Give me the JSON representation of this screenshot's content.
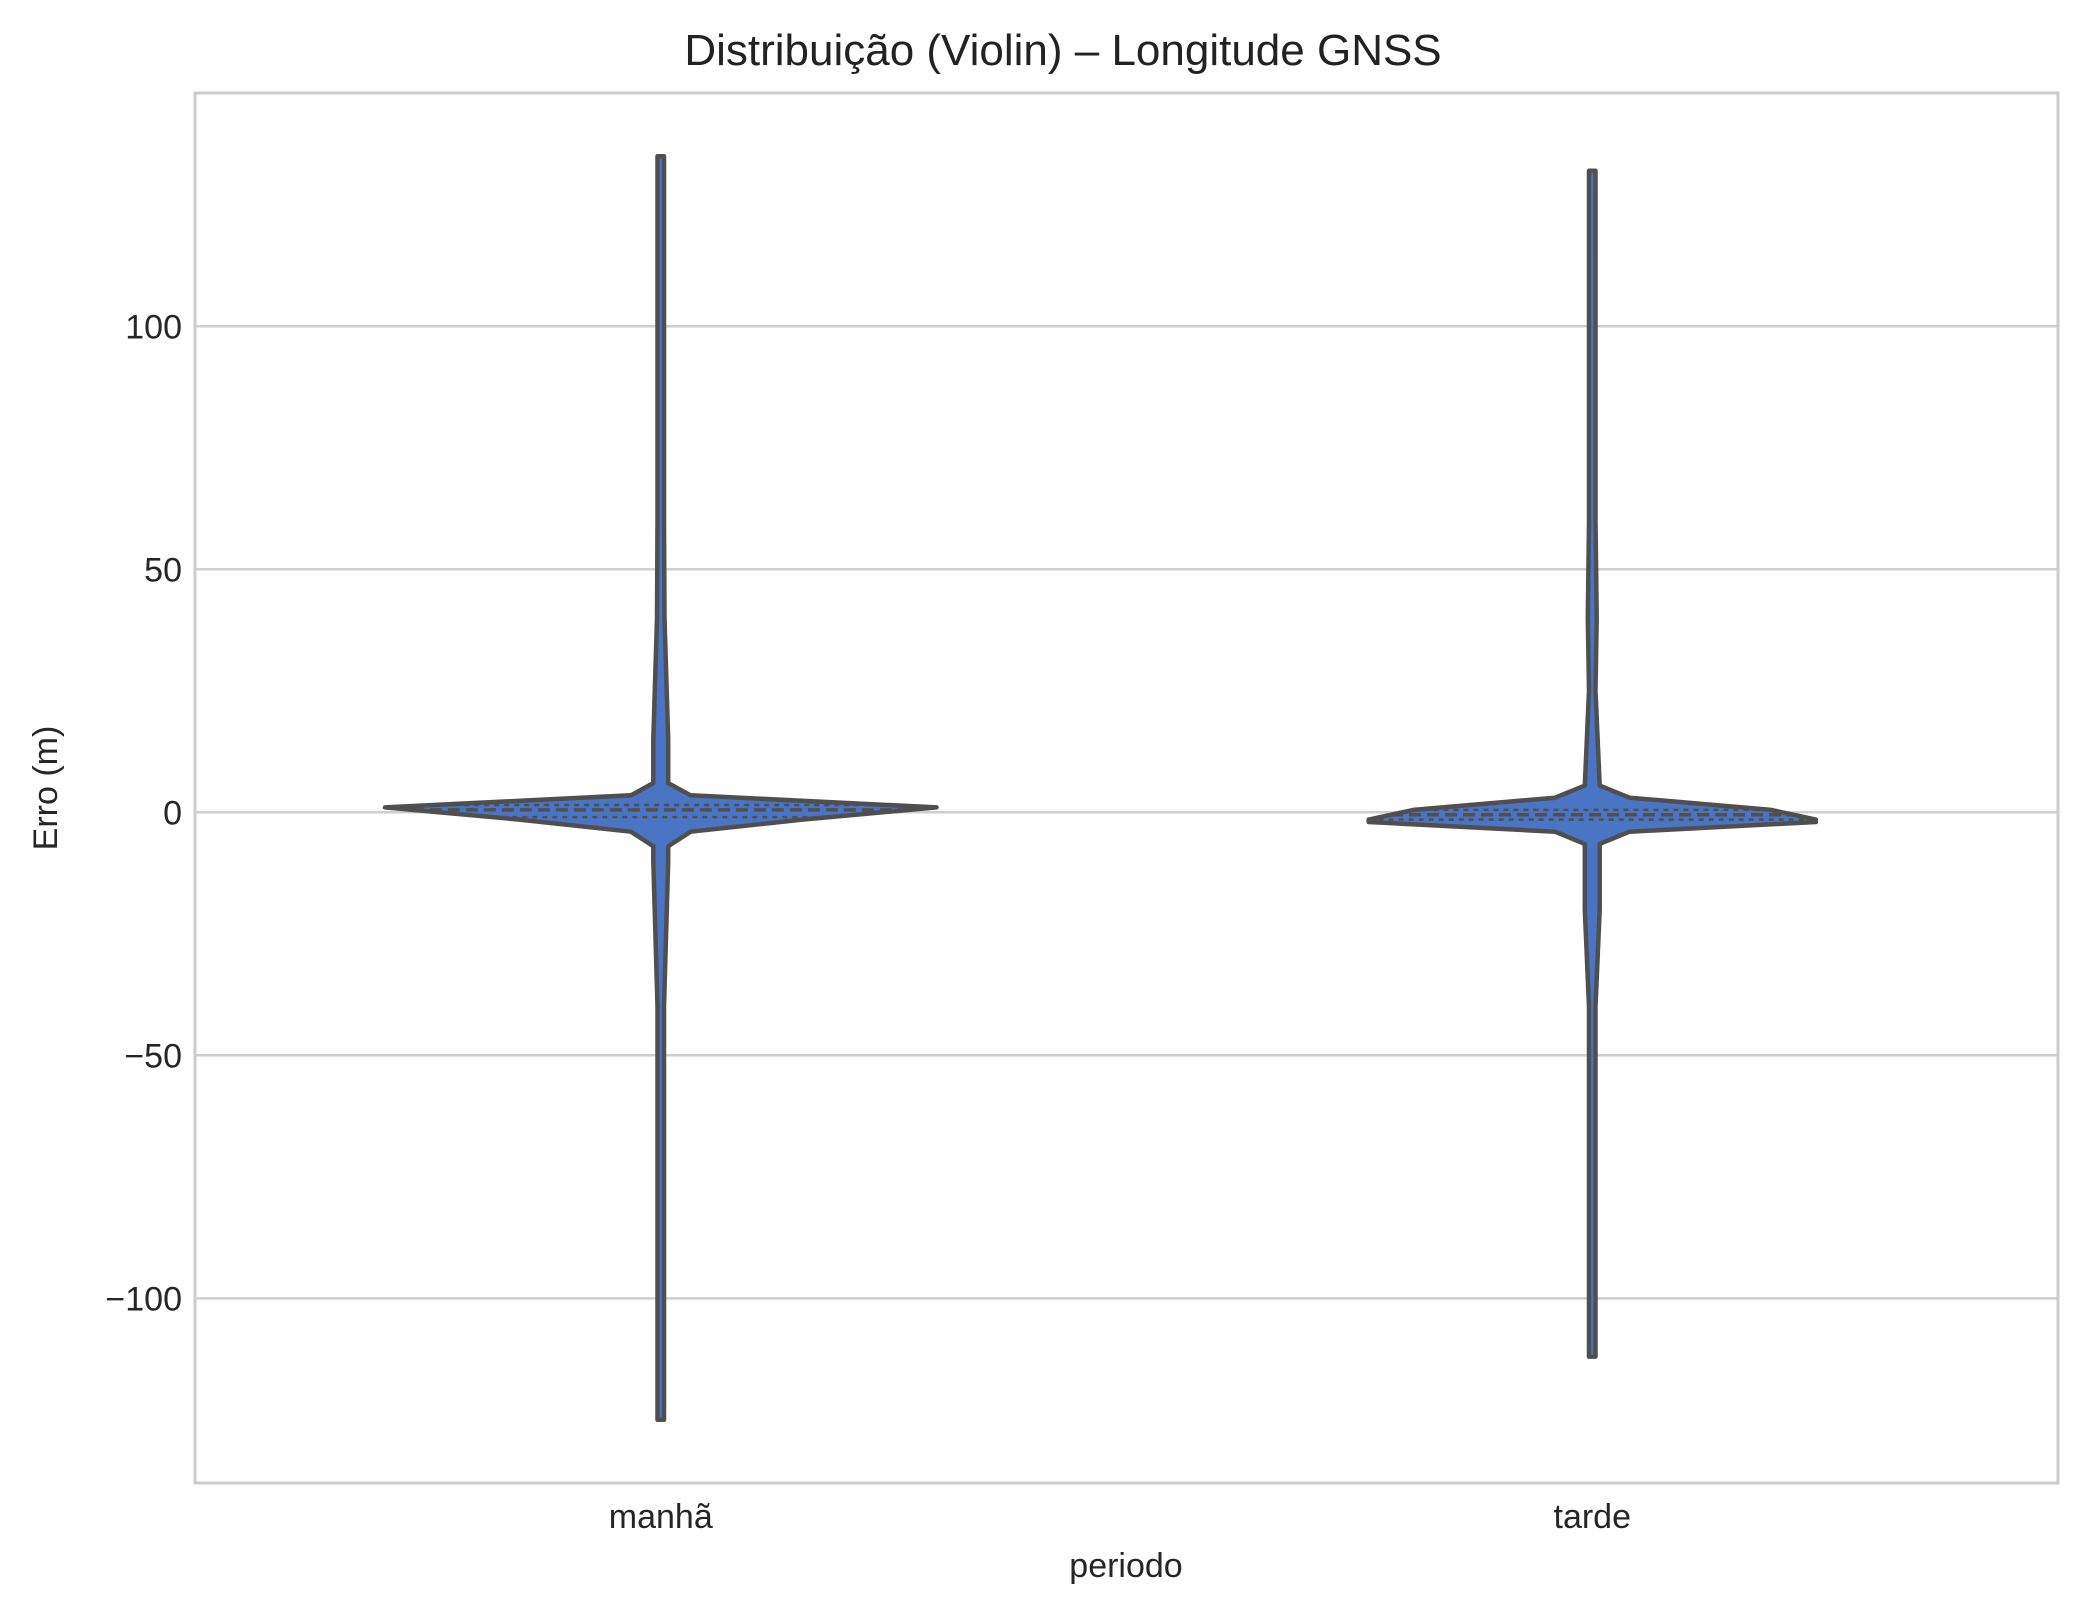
{
  "chart_data": {
    "type": "violin",
    "title": "Distribuição (Violin) – Longitude GNSS",
    "xlabel": "periodo",
    "ylabel": "Erro (m)",
    "categories": [
      "manhã",
      "tarde"
    ],
    "ylim": [
      -138,
      148
    ],
    "yticks": [
      100,
      50,
      0,
      -50,
      -100
    ],
    "ytick_labels": [
      "100",
      "50",
      "0",
      "−50",
      "−100"
    ],
    "grid": true,
    "inner": "quartile",
    "colors": {
      "fill": "#4a74c4",
      "edge": "#4f4f4f",
      "grid": "#cfcfcf",
      "frame": "#cccccc",
      "title": "#222222",
      "text": "#262626"
    },
    "violins": [
      {
        "category": "manhã",
        "min": -125,
        "max": 135,
        "quartiles": [
          -1.0,
          0.5,
          1.5
        ],
        "profile": [
          {
            "y": -125,
            "w": 0.0
          },
          {
            "y": -40,
            "w": 0.003
          },
          {
            "y": -10,
            "w": 0.02
          },
          {
            "y": -7,
            "w": 0.02
          },
          {
            "y": -4,
            "w": 0.08
          },
          {
            "y": -1.5,
            "w": 0.38
          },
          {
            "y": 1,
            "w": 0.74
          },
          {
            "y": 3.5,
            "w": 0.08
          },
          {
            "y": 6,
            "w": 0.02
          },
          {
            "y": 15,
            "w": 0.02
          },
          {
            "y": 40,
            "w": 0.01
          },
          {
            "y": 60,
            "w": 0.008
          },
          {
            "y": 135,
            "w": 0.0
          }
        ]
      },
      {
        "category": "tarde",
        "min": -112,
        "max": 132,
        "quartiles": [
          -1.5,
          -0.5,
          0.5
        ],
        "profile": [
          {
            "y": -112,
            "w": 0.0
          },
          {
            "y": -85,
            "w": 0.003
          },
          {
            "y": -40,
            "w": 0.003
          },
          {
            "y": -20,
            "w": 0.02
          },
          {
            "y": -10,
            "w": 0.02
          },
          {
            "y": -6.5,
            "w": 0.02
          },
          {
            "y": -4,
            "w": 0.1
          },
          {
            "y": -2,
            "w": 0.6
          },
          {
            "y": -1.5,
            "w": 0.6
          },
          {
            "y": 0.5,
            "w": 0.48
          },
          {
            "y": 3,
            "w": 0.1
          },
          {
            "y": 5.5,
            "w": 0.02
          },
          {
            "y": 25,
            "w": 0.008
          },
          {
            "y": 40,
            "w": 0.012
          },
          {
            "y": 60,
            "w": 0.008
          },
          {
            "y": 132,
            "w": 0.0
          }
        ]
      }
    ]
  }
}
